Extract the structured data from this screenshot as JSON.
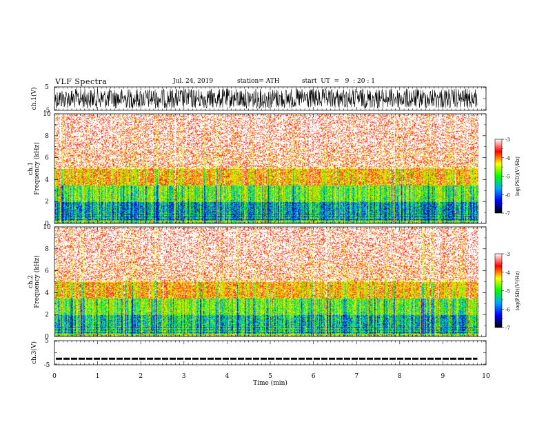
{
  "header": {
    "title": "VLF Spectra",
    "date": "Jul. 24, 2019",
    "station": "station= ATH",
    "start_ut": "start  UT  =   9  : 20 : 1"
  },
  "chart_data": [
    {
      "type": "line",
      "panel": "ch1-waveform",
      "ylabel": "ch.1(V)",
      "yticks": [
        "5",
        "-5"
      ],
      "ylim": [
        -5,
        5
      ],
      "xlim": [
        0,
        10
      ],
      "x_unit": "min",
      "signal_amplitude_v": 4.5
    },
    {
      "type": "heatmap",
      "panel": "ch1-spectrogram",
      "ylabel_channel": "ch.1",
      "ylabel": "Frequency (kHz)",
      "yticks": [
        "0",
        "2",
        "4",
        "6",
        "8",
        "10"
      ],
      "ylim": [
        0,
        10
      ],
      "xlim": [
        0,
        9.8
      ],
      "colorbar": {
        "label": "log(PSD)(V²/Hz)",
        "ticks": [
          "-3",
          "-4",
          "-5",
          "-6",
          "-7"
        ],
        "range": [
          -7,
          -3
        ],
        "colors": [
          "#000000",
          "#0000ff",
          "#00aaff",
          "#00ff00",
          "#ffff00",
          "#ff0000",
          "#ffffff"
        ]
      }
    },
    {
      "type": "heatmap",
      "panel": "ch2-spectrogram",
      "ylabel_channel": "ch.2",
      "ylabel": "Frequency (kHz)",
      "yticks": [
        "0",
        "2",
        "4",
        "6",
        "8",
        "10"
      ],
      "ylim": [
        0,
        10
      ],
      "xlim": [
        0,
        9.8
      ],
      "colorbar": {
        "label": "log(PSD)(V²/Hz)",
        "ticks": [
          "-3",
          "-4",
          "-5",
          "-6",
          "-7"
        ],
        "range": [
          -7,
          -3
        ],
        "colors": [
          "#000000",
          "#0000ff",
          "#00aaff",
          "#00ff00",
          "#ffff00",
          "#ff0000",
          "#ffffff"
        ]
      }
    },
    {
      "type": "line",
      "panel": "ch3-waveform",
      "ylabel": "ch.3(V)",
      "yticks": [
        "5",
        "-5"
      ],
      "ylim": [
        -5,
        5
      ],
      "xlim": [
        0,
        10
      ],
      "signal_level_v": -2.5
    },
    {
      "type": "axis",
      "xlabel": "Time (min)",
      "xticks": [
        "0",
        "1",
        "2",
        "3",
        "4",
        "5",
        "6",
        "7",
        "8",
        "9",
        "10"
      ],
      "xlim": [
        0,
        10
      ]
    }
  ]
}
